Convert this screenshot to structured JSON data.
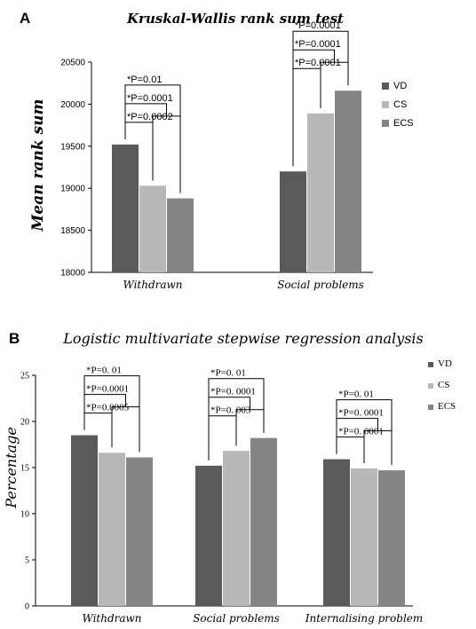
{
  "chart_data": [
    {
      "type": "bar",
      "panel_label": "A",
      "title": "Kruskal-Wallis rank sum test",
      "ylabel": "Mean rank sum",
      "xlabel": "",
      "ylim": [
        18000,
        20500
      ],
      "yticks": [
        18000,
        18500,
        19000,
        19500,
        20000,
        20500
      ],
      "categories": [
        "Withdrawn",
        "Social problems"
      ],
      "series": [
        {
          "name": "VD",
          "color": "#5a5a5a",
          "values": [
            19520,
            19200
          ]
        },
        {
          "name": "CS",
          "color": "#b8b8b8",
          "values": [
            19030,
            19890
          ]
        },
        {
          "name": "ECS",
          "color": "#858585",
          "values": [
            18880,
            20160
          ]
        }
      ],
      "legend_position": "right",
      "annotations": [
        {
          "category": 0,
          "text": "*P=0.01",
          "from": 0,
          "to": 2
        },
        {
          "category": 0,
          "text": "*P=0.0001",
          "from": 0,
          "to": 1.5
        },
        {
          "category": 0,
          "text": "*P=0.0002",
          "from": 0,
          "to": 1
        },
        {
          "category": 1,
          "text": "*P=0.0001",
          "from": 0,
          "to": 2
        },
        {
          "category": 1,
          "text": "*P=0.0001",
          "from": 0,
          "to": 1.5
        },
        {
          "category": 1,
          "text": "*P=0.0001",
          "from": 0,
          "to": 1
        }
      ]
    },
    {
      "type": "bar",
      "panel_label": "B",
      "title": "Logistic multivariate stepwise regression analysis",
      "ylabel": "Percentage",
      "xlabel": "",
      "ylim": [
        0,
        25
      ],
      "yticks": [
        0,
        5,
        10,
        15,
        20,
        25
      ],
      "categories": [
        "Withdrawn",
        "Social problems",
        "Internalising problem"
      ],
      "series": [
        {
          "name": "VD",
          "color": "#5a5a5a",
          "values": [
            18.5,
            15.2,
            15.9
          ]
        },
        {
          "name": "CS",
          "color": "#b8b8b8",
          "values": [
            16.6,
            16.8,
            14.9
          ]
        },
        {
          "name": "ECS",
          "color": "#858585",
          "values": [
            16.1,
            18.2,
            14.7
          ]
        }
      ],
      "legend_position": "right",
      "annotations": [
        {
          "category": 0,
          "text": "*P=0. 01",
          "from": 0,
          "to": 2
        },
        {
          "category": 0,
          "text": "*P=0.0001",
          "from": 0,
          "to": 1.5
        },
        {
          "category": 0,
          "text": "*P=0.0005",
          "from": 0,
          "to": 1
        },
        {
          "category": 1,
          "text": "*P=0. 01",
          "from": 0,
          "to": 2
        },
        {
          "category": 1,
          "text": "*P=0. 0001",
          "from": 0,
          "to": 1.5
        },
        {
          "category": 1,
          "text": "*P=0. 003",
          "from": 0,
          "to": 1
        },
        {
          "category": 2,
          "text": "*P=0. 01",
          "from": 0,
          "to": 2
        },
        {
          "category": 2,
          "text": "*P=0. 0001",
          "from": 0,
          "to": 1.5
        },
        {
          "category": 2,
          "text": "*P=0. 0001",
          "from": 0,
          "to": 1
        }
      ]
    }
  ]
}
